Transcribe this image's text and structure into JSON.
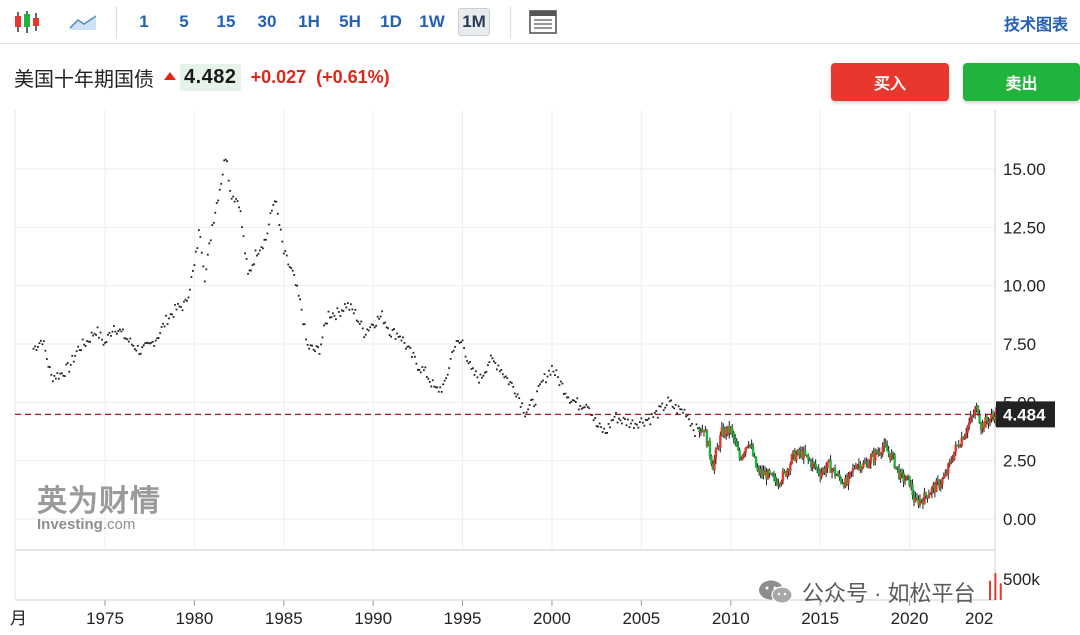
{
  "toolbar": {
    "intervals": [
      "1",
      "5",
      "15",
      "30",
      "1H",
      "5H",
      "1D",
      "1W",
      "1M"
    ],
    "active_interval": "1M",
    "right_label": "技术图表"
  },
  "quote": {
    "name": "美国十年期国债",
    "price": "4.482",
    "change": "+0.027",
    "change_pct": "(+0.61%)"
  },
  "buttons": {
    "buy": "买入",
    "sell": "卖出"
  },
  "logo": {
    "cn": "英为财情",
    "en_main": "Investing",
    "en_suffix": ".com"
  },
  "watermark": "公众号 · 如松平台",
  "colors": {
    "up": "#e8372c",
    "down": "#20b43c",
    "price_line": "#9a1f1f",
    "price_tag_bg": "#222222"
  },
  "chart_data": {
    "type": "line",
    "title": "美国十年期国债",
    "y_ticks": [
      "15.00",
      "12.50",
      "10.00",
      "7.50",
      "5.00",
      "2.50",
      "0.00"
    ],
    "x_ticks": [
      "1975",
      "1980",
      "1985",
      "1990",
      "1995",
      "2000",
      "2005",
      "2010",
      "2015",
      "2020"
    ],
    "x_first_partial": "月",
    "x_last_partial": "202",
    "ylim": [
      0,
      16
    ],
    "current_price_label": "4.484",
    "volume_label": "500k",
    "series": [
      {
        "values_by_year": [
          [
            1971,
            7.3
          ],
          [
            1971.5,
            7.7
          ],
          [
            1972,
            6.1
          ],
          [
            1972.5,
            6.2
          ],
          [
            1973,
            6.5
          ],
          [
            1973.5,
            7.3
          ],
          [
            1974,
            7.6
          ],
          [
            1974.5,
            8.1
          ],
          [
            1975,
            7.5
          ],
          [
            1975.5,
            8.3
          ],
          [
            1976,
            7.9
          ],
          [
            1976.5,
            7.5
          ],
          [
            1977,
            7.2
          ],
          [
            1977.5,
            7.4
          ],
          [
            1978,
            7.9
          ],
          [
            1978.5,
            8.6
          ],
          [
            1979,
            9.0
          ],
          [
            1979.5,
            9.2
          ],
          [
            1980,
            10.8
          ],
          [
            1980.3,
            12.5
          ],
          [
            1980.6,
            10.3
          ],
          [
            1981,
            12.6
          ],
          [
            1981.5,
            14.5
          ],
          [
            1981.8,
            15.8
          ],
          [
            1982,
            14.0
          ],
          [
            1982.5,
            13.6
          ],
          [
            1983,
            10.4
          ],
          [
            1983.5,
            11.5
          ],
          [
            1984,
            12.0
          ],
          [
            1984.5,
            13.8
          ],
          [
            1985,
            11.4
          ],
          [
            1985.5,
            10.5
          ],
          [
            1986,
            9.0
          ],
          [
            1986.3,
            7.4
          ],
          [
            1986.8,
            7.2
          ],
          [
            1987,
            7.3
          ],
          [
            1987.5,
            8.8
          ],
          [
            1988,
            8.8
          ],
          [
            1988.5,
            9.2
          ],
          [
            1989,
            8.8
          ],
          [
            1989.5,
            8.0
          ],
          [
            1990,
            8.4
          ],
          [
            1990.5,
            8.7
          ],
          [
            1991,
            8.0
          ],
          [
            1991.5,
            7.9
          ],
          [
            1992,
            7.2
          ],
          [
            1992.5,
            6.6
          ],
          [
            1993,
            6.2
          ],
          [
            1993.5,
            5.5
          ],
          [
            1994,
            5.7
          ],
          [
            1994.5,
            7.4
          ],
          [
            1995,
            7.6
          ],
          [
            1995.5,
            6.3
          ],
          [
            1996,
            6.0
          ],
          [
            1996.5,
            6.8
          ],
          [
            1997,
            6.6
          ],
          [
            1997.5,
            6.0
          ],
          [
            1998,
            5.5
          ],
          [
            1998.5,
            4.6
          ],
          [
            1999,
            5.0
          ],
          [
            1999.5,
            5.9
          ],
          [
            2000,
            6.5
          ],
          [
            2000.5,
            5.8
          ],
          [
            2001,
            5.2
          ],
          [
            2001.5,
            4.9
          ],
          [
            2002,
            5.0
          ],
          [
            2002.5,
            4.0
          ],
          [
            2003,
            3.7
          ],
          [
            2003.5,
            4.4
          ],
          [
            2004,
            4.2
          ],
          [
            2004.5,
            4.1
          ],
          [
            2005,
            4.2
          ],
          [
            2005.5,
            4.3
          ],
          [
            2006,
            4.6
          ],
          [
            2006.5,
            5.0
          ],
          [
            2007,
            4.7
          ],
          [
            2007.5,
            4.6
          ],
          [
            2008,
            3.8
          ],
          [
            2008.5,
            3.9
          ],
          [
            2009,
            2.3
          ],
          [
            2009.5,
            3.7
          ],
          [
            2010,
            3.8
          ],
          [
            2010.5,
            2.6
          ],
          [
            2011,
            3.4
          ],
          [
            2011.5,
            2.0
          ],
          [
            2012,
            1.9
          ],
          [
            2012.5,
            1.6
          ],
          [
            2013,
            1.9
          ],
          [
            2013.5,
            2.7
          ],
          [
            2014,
            2.8
          ],
          [
            2014.5,
            2.4
          ],
          [
            2015,
            2.0
          ],
          [
            2015.5,
            2.3
          ],
          [
            2016,
            1.8
          ],
          [
            2016.5,
            1.5
          ],
          [
            2017,
            2.4
          ],
          [
            2017.5,
            2.3
          ],
          [
            2018,
            2.7
          ],
          [
            2018.5,
            3.1
          ],
          [
            2019,
            2.7
          ],
          [
            2019.5,
            1.8
          ],
          [
            2020,
            1.6
          ],
          [
            2020.3,
            0.7
          ],
          [
            2020.8,
            0.9
          ],
          [
            2021,
            1.1
          ],
          [
            2021.5,
            1.4
          ],
          [
            2022,
            1.8
          ],
          [
            2022.5,
            2.9
          ],
          [
            2023,
            3.6
          ],
          [
            2023.8,
            4.8
          ],
          [
            2024,
            4.0
          ],
          [
            2024.5,
            4.3
          ],
          [
            2025,
            4.6
          ],
          [
            2025.4,
            4.48
          ]
        ]
      }
    ],
    "volume_bars": [
      [
        2024.5,
        300000
      ],
      [
        2024.8,
        420000
      ],
      [
        2025.1,
        260000
      ]
    ],
    "grid": true,
    "legend": "none"
  }
}
